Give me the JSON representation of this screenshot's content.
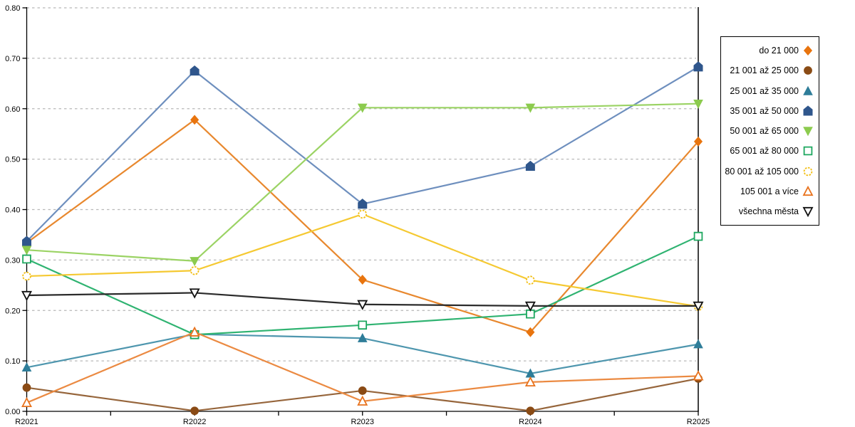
{
  "chart_data": {
    "type": "line",
    "title": "",
    "xlabel": "",
    "ylabel": "",
    "categories": [
      "R2021",
      "R2022",
      "R2023",
      "R2024",
      "R2025"
    ],
    "ylim": [
      0.0,
      0.8
    ],
    "ytick_step": 0.1,
    "ytick_labels": [
      "0.00",
      "0.10",
      "0.20",
      "0.30",
      "0.40",
      "0.50",
      "0.60",
      "0.70",
      "0.80"
    ],
    "grid": "horizontal-dashed",
    "gridline_color": "#b8b8b8",
    "axis_color": "#000000",
    "legend_position": "right",
    "series": [
      {
        "name": "do 21 000",
        "marker": "diamond",
        "style": "filled",
        "color": "#E8740E",
        "line_color": "#E8882E",
        "values": [
          0.334,
          0.578,
          0.261,
          0.157,
          0.535
        ]
      },
      {
        "name": "21 001 až 25 000",
        "marker": "circle",
        "style": "filled",
        "color": "#8A4B15",
        "line_color": "#96653B",
        "values": [
          0.047,
          0.001,
          0.041,
          0.001,
          0.065
        ]
      },
      {
        "name": "25 001 až 35 000",
        "marker": "triangle-up",
        "style": "filled",
        "color": "#2E7D99",
        "line_color": "#4E96AE",
        "values": [
          0.087,
          0.153,
          0.145,
          0.075,
          0.133
        ]
      },
      {
        "name": "35 001 až 50 000",
        "marker": "pentagon",
        "style": "filled",
        "color": "#2F568C",
        "line_color": "#6E8FBE",
        "values": [
          0.337,
          0.675,
          0.411,
          0.486,
          0.683
        ]
      },
      {
        "name": "50 001 až 65 000",
        "marker": "triangle-down",
        "style": "filled",
        "color": "#8CCB4E",
        "line_color": "#9BD364",
        "values": [
          0.32,
          0.298,
          0.602,
          0.602,
          0.61
        ]
      },
      {
        "name": "65 001 až 80 000",
        "marker": "square",
        "style": "hollow",
        "color": "#1DA75F",
        "line_color": "#2FB371",
        "values": [
          0.302,
          0.152,
          0.171,
          0.193,
          0.347
        ]
      },
      {
        "name": "80 001 až 105 000",
        "marker": "sun-circle",
        "style": "hollow",
        "color": "#F2BE13",
        "line_color": "#F5C932",
        "values": [
          0.268,
          0.279,
          0.391,
          0.26,
          0.208
        ]
      },
      {
        "name": "105 001 a více",
        "marker": "triangle-up",
        "style": "hollow",
        "color": "#E8731E",
        "line_color": "#EB8A42",
        "values": [
          0.017,
          0.157,
          0.02,
          0.058,
          0.07
        ]
      },
      {
        "name": "všechna města",
        "marker": "triangle-down",
        "style": "hollow",
        "color": "#111111",
        "line_color": "#2b2b2b",
        "values": [
          0.23,
          0.235,
          0.212,
          0.209,
          0.209
        ]
      }
    ]
  }
}
